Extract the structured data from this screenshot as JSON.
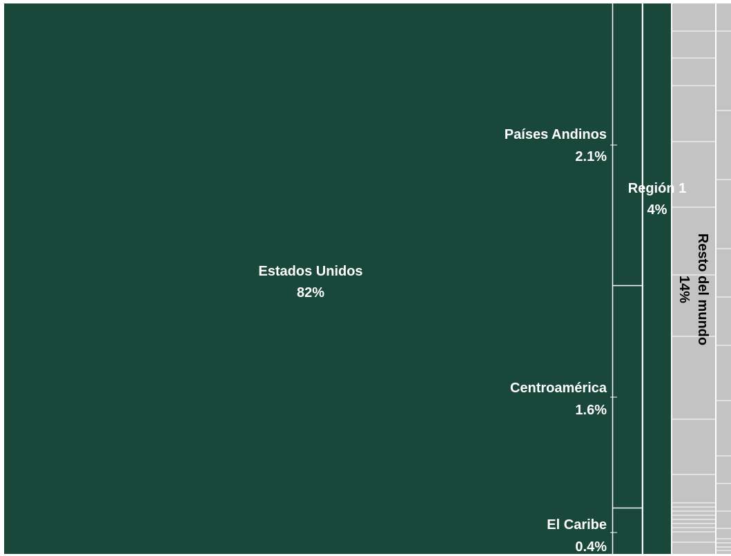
{
  "chart_data": {
    "type": "treemap",
    "colors": {
      "green": "#19473A",
      "grey": "#C3C3C3",
      "border": "#FFFFFF",
      "label_light": "#FFFFFF",
      "label_dark": "#000000"
    },
    "items": [
      {
        "key": "us",
        "name": "Estados Unidos",
        "label": "82%",
        "value": 82
      },
      {
        "key": "andinos",
        "name": "Países Andinos",
        "label": "2.1%",
        "value": 2.1
      },
      {
        "key": "centro",
        "name": "Centroamérica",
        "label": "1.6%",
        "value": 1.6
      },
      {
        "key": "caribe",
        "name": "El Caribe",
        "label": "0.4%",
        "value": 0.4
      },
      {
        "key": "region1",
        "name": "Región 1",
        "label": "4%",
        "value": 4
      },
      {
        "key": "resto",
        "name": "Resto del mundo",
        "label": "14%",
        "value": 14
      }
    ]
  }
}
